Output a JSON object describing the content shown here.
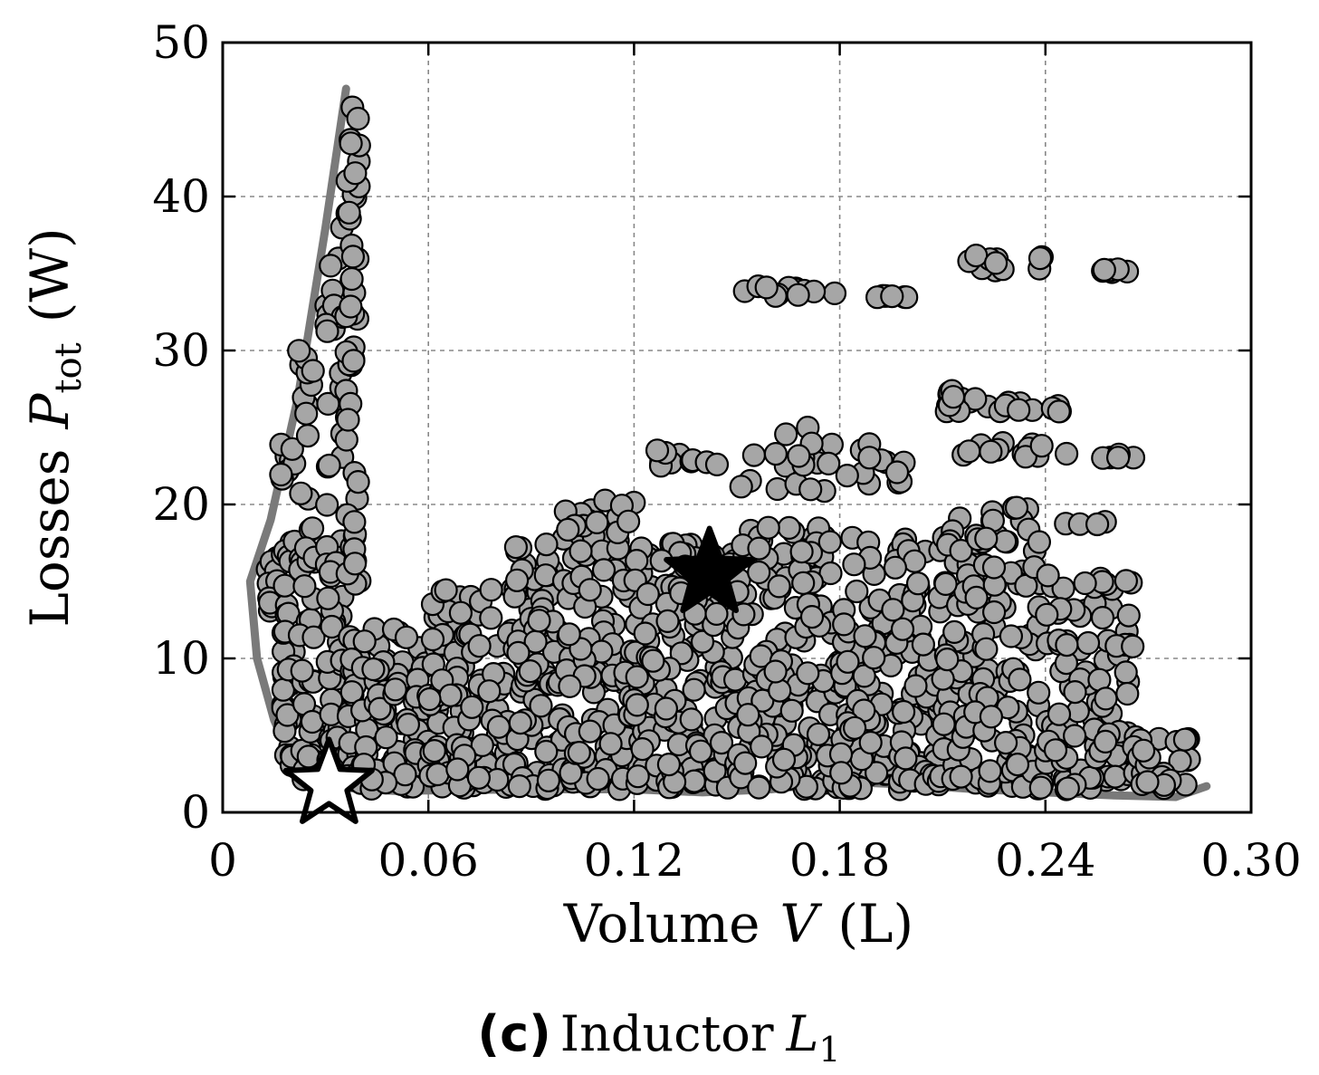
{
  "chart_data": {
    "type": "scatter",
    "xlim": [
      0,
      0.3
    ],
    "ylim": [
      0,
      50
    ],
    "x_ticks": [
      {
        "value": 0,
        "label": "0"
      },
      {
        "value": 0.06,
        "label": "0.06"
      },
      {
        "value": 0.12,
        "label": "0.12"
      },
      {
        "value": 0.18,
        "label": "0.18"
      },
      {
        "value": 0.24,
        "label": "0.24"
      },
      {
        "value": 0.3,
        "label": "0.30"
      }
    ],
    "y_ticks": [
      {
        "value": 0,
        "label": "0"
      },
      {
        "value": 10,
        "label": "10"
      },
      {
        "value": 20,
        "label": "20"
      },
      {
        "value": 30,
        "label": "30"
      },
      {
        "value": 40,
        "label": "40"
      },
      {
        "value": 50,
        "label": "50"
      }
    ],
    "xlabel": {
      "text": "Volume",
      "symbol": "V",
      "unit": "(L)"
    },
    "ylabel": {
      "text": "Losses",
      "symbol": "P",
      "subscript": "tot",
      "unit": "(W)"
    },
    "grid": true,
    "series": [
      {
        "marker": "circle",
        "color": "#a6a6a6",
        "clusters": [
          {
            "x": [
              0.013,
              0.016
            ],
            "y": [
              13,
              17.5
            ],
            "n": 10
          },
          {
            "x": [
              0.017,
              0.021
            ],
            "y": [
              2.5,
              24
            ],
            "n": 45
          },
          {
            "x": [
              0.022,
              0.027
            ],
            "y": [
              2,
              31
            ],
            "n": 45
          },
          {
            "x": [
              0.03,
              0.035
            ],
            "y": [
              1.5,
              38.5
            ],
            "n": 55
          },
          {
            "x": [
              0.036,
              0.04
            ],
            "y": [
              1.5,
              46
            ],
            "n": 70
          },
          {
            "x": [
              0.04,
              0.06
            ],
            "y": [
              1.5,
              12
            ],
            "n": 90
          },
          {
            "x": [
              0.06,
              0.085
            ],
            "y": [
              1.5,
              14.5
            ],
            "n": 110
          },
          {
            "x": [
              0.085,
              0.1
            ],
            "y": [
              1.5,
              17.8
            ],
            "n": 90
          },
          {
            "x": [
              0.1,
              0.12
            ],
            "y": [
              1.5,
              20.5
            ],
            "n": 120
          },
          {
            "x": [
              0.12,
              0.15
            ],
            "y": [
              1.5,
              17.5
            ],
            "n": 170
          },
          {
            "x": [
              0.15,
              0.18
            ],
            "y": [
              1.5,
              18.5
            ],
            "n": 160
          },
          {
            "x": [
              0.18,
              0.21
            ],
            "y": [
              1.5,
              18
            ],
            "n": 160
          },
          {
            "x": [
              0.21,
              0.24
            ],
            "y": [
              1.5,
              20
            ],
            "n": 150
          },
          {
            "x": [
              0.24,
              0.265
            ],
            "y": [
              1.5,
              15.5
            ],
            "n": 90
          },
          {
            "x": [
              0.265,
              0.282
            ],
            "y": [
              1.5,
              5
            ],
            "n": 30
          },
          {
            "x": [
              0.125,
              0.145
            ],
            "y": [
              22.5,
              23.8
            ],
            "n": 12
          },
          {
            "x": [
              0.15,
              0.18
            ],
            "y": [
              20.8,
              25
            ],
            "n": 18
          },
          {
            "x": [
              0.18,
              0.2
            ],
            "y": [
              21,
              24.3
            ],
            "n": 12
          },
          {
            "x": [
              0.2,
              0.225
            ],
            "y": [
              26,
              27.5
            ],
            "n": 12
          },
          {
            "x": [
              0.225,
              0.24
            ],
            "y": [
              26,
              26.7
            ],
            "n": 6
          },
          {
            "x": [
              0.24,
              0.247
            ],
            "y": [
              26,
              26.5
            ],
            "n": 4
          },
          {
            "x": [
              0.215,
              0.24
            ],
            "y": [
              23,
              24
            ],
            "n": 12
          },
          {
            "x": [
              0.245,
              0.268
            ],
            "y": [
              23,
              23.3
            ],
            "n": 6
          },
          {
            "x": [
              0.15,
              0.18
            ],
            "y": [
              33.5,
              34.3
            ],
            "n": 12
          },
          {
            "x": [
              0.19,
              0.2
            ],
            "y": [
              33.4,
              33.6
            ],
            "n": 6
          },
          {
            "x": [
              0.215,
              0.24
            ],
            "y": [
              35.2,
              36.2
            ],
            "n": 12
          },
          {
            "x": [
              0.25,
              0.268
            ],
            "y": [
              35,
              35.3
            ],
            "n": 6
          },
          {
            "x": [
              0.245,
              0.268
            ],
            "y": [
              18.7,
              18.9
            ],
            "n": 5
          },
          {
            "x": [
              0.245,
              0.268
            ],
            "y": [
              14.8,
              15.2
            ],
            "n": 6
          },
          {
            "x": [
              0.255,
              0.268
            ],
            "y": [
              10.7,
              10.9
            ],
            "n": 4
          }
        ]
      }
    ],
    "front": [
      [
        0.036,
        47
      ],
      [
        0.03,
        38
      ],
      [
        0.022,
        27
      ],
      [
        0.014,
        19
      ],
      [
        0.008,
        15
      ],
      [
        0.01,
        10
      ],
      [
        0.015,
        6
      ],
      [
        0.02,
        3.5
      ],
      [
        0.025,
        2.2
      ],
      [
        0.035,
        1.6
      ],
      [
        0.05,
        1.4
      ],
      [
        0.09,
        1.5
      ],
      [
        0.12,
        1.5
      ],
      [
        0.14,
        1.3
      ],
      [
        0.16,
        1.5
      ],
      [
        0.18,
        2.0
      ],
      [
        0.2,
        1.8
      ],
      [
        0.22,
        1.5
      ],
      [
        0.26,
        1.1
      ],
      [
        0.278,
        1.0
      ],
      [
        0.287,
        1.7
      ]
    ],
    "markers": [
      {
        "shape": "star",
        "fill": "#000000",
        "x": 0.142,
        "y": 15.5
      },
      {
        "shape": "star",
        "fill": "#ffffff",
        "x": 0.031,
        "y": 1.8
      }
    ]
  },
  "caption": {
    "label": "(c)",
    "text": "Inductor",
    "symbol": "L",
    "subscript": "1"
  }
}
